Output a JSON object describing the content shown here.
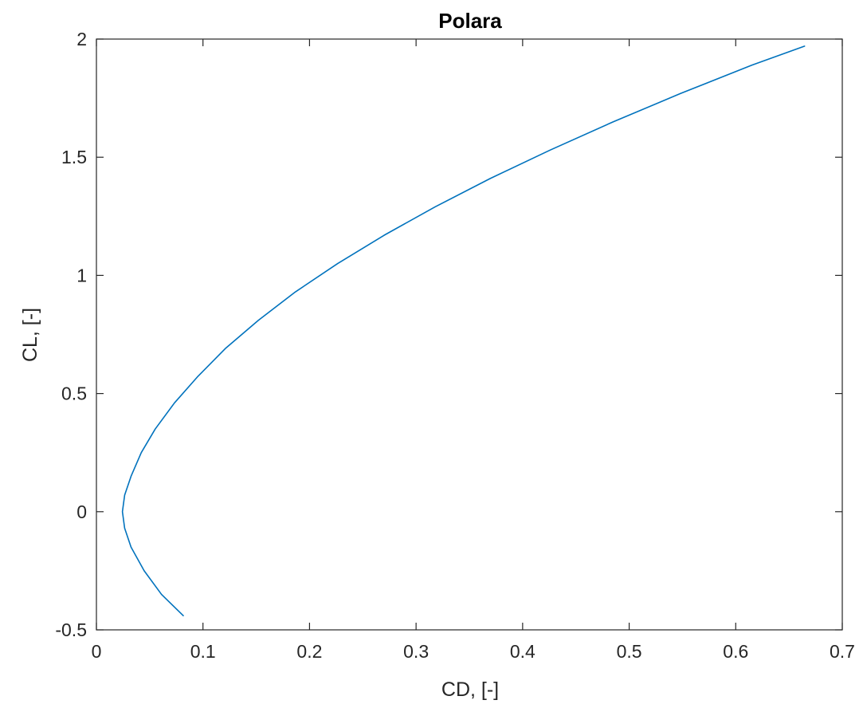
{
  "chart_data": {
    "type": "line",
    "title": "Polara",
    "xlabel": "CD, [-]",
    "ylabel": "CL, [-]",
    "xlim": [
      0,
      0.7
    ],
    "ylim": [
      -0.5,
      2
    ],
    "xticks": [
      0,
      0.1,
      0.2,
      0.3,
      0.4,
      0.5,
      0.6,
      0.7
    ],
    "xtick_labels": [
      "0",
      "0.1",
      "0.2",
      "0.3",
      "0.4",
      "0.5",
      "0.6",
      "0.7"
    ],
    "yticks": [
      -0.5,
      0,
      0.5,
      1,
      1.5,
      2
    ],
    "ytick_labels": [
      "-0.5",
      "0",
      "0.5",
      "1",
      "1.5",
      "2"
    ],
    "grid": false,
    "series": [
      {
        "color": "#0072BD",
        "x": [
          0.0815,
          0.0611,
          0.0448,
          0.0325,
          0.0265,
          0.0244,
          0.0265,
          0.0325,
          0.0421,
          0.0552,
          0.0732,
          0.0947,
          0.1209,
          0.152,
          0.1867,
          0.2264,
          0.2701,
          0.3179,
          0.3696,
          0.4257,
          0.4851,
          0.5484,
          0.6153,
          0.6646
        ],
        "y": [
          -0.44,
          -0.35,
          -0.25,
          -0.15,
          -0.07,
          0.0,
          0.07,
          0.15,
          0.25,
          0.35,
          0.46,
          0.57,
          0.69,
          0.81,
          0.93,
          1.05,
          1.17,
          1.29,
          1.41,
          1.53,
          1.65,
          1.77,
          1.89,
          1.97
        ]
      }
    ]
  }
}
